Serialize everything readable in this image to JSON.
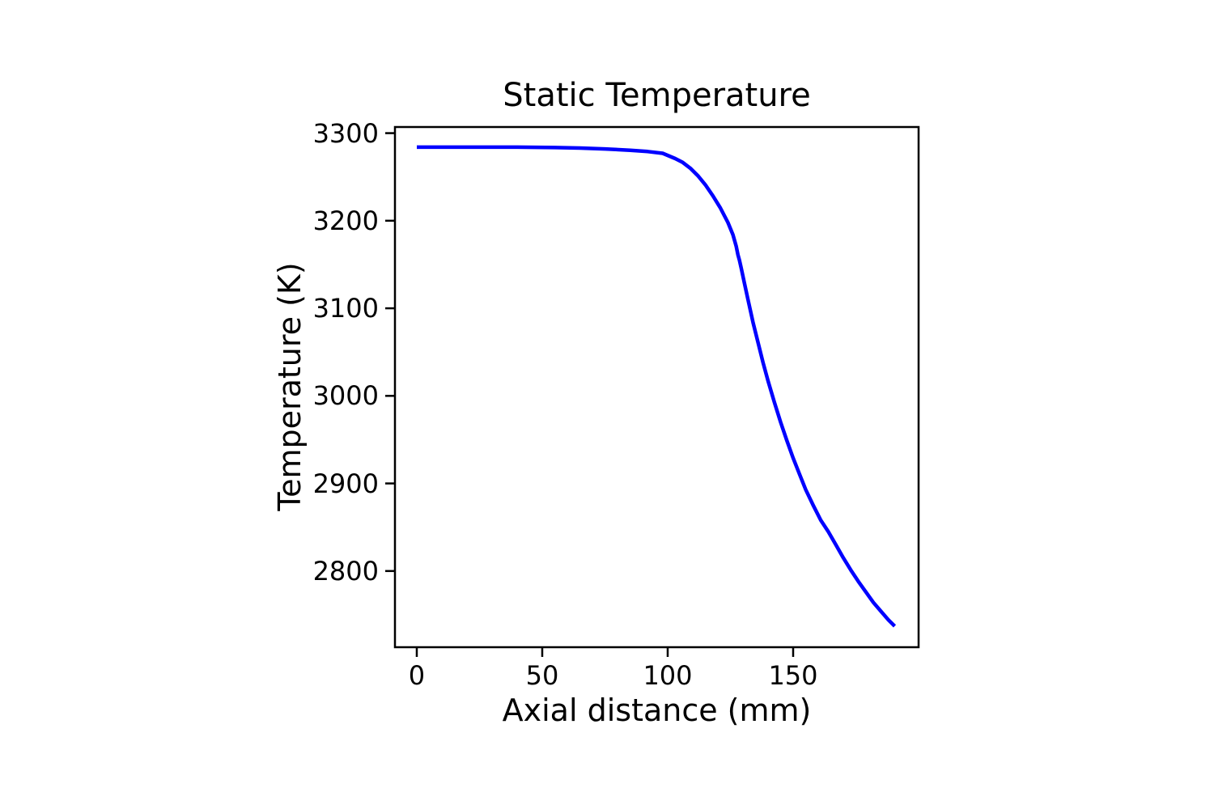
{
  "figure": {
    "background": "#ffffff",
    "frame_color": "#000000",
    "text_color": "#000000"
  },
  "chart_data": {
    "type": "line",
    "title": "Static Temperature",
    "xlabel": "Axial distance (mm)",
    "ylabel": "Temperature (K)",
    "xlim": [
      -8.7,
      200.0
    ],
    "ylim": [
      2713,
      3307
    ],
    "x_ticks": [
      0,
      50,
      100,
      150
    ],
    "y_ticks": [
      3300,
      3200,
      3100,
      3000,
      2900,
      2800
    ],
    "grid": false,
    "legend_position": "none",
    "series": [
      {
        "name": "Static Temperature",
        "color": "#0000ff",
        "points": [
          [
            0,
            3284
          ],
          [
            20,
            3284
          ],
          [
            40,
            3284
          ],
          [
            55,
            3283.5
          ],
          [
            65,
            3283
          ],
          [
            75,
            3282
          ],
          [
            85,
            3280.5
          ],
          [
            92,
            3279
          ],
          [
            98,
            3277
          ],
          [
            103,
            3271
          ],
          [
            106,
            3266.5
          ],
          [
            109,
            3260
          ],
          [
            112,
            3251.5
          ],
          [
            115,
            3241
          ],
          [
            118,
            3228.5
          ],
          [
            121,
            3214.5
          ],
          [
            124,
            3198
          ],
          [
            126,
            3184
          ],
          [
            127.3,
            3171
          ],
          [
            128.0,
            3161
          ],
          [
            128.6,
            3155
          ],
          [
            129.3,
            3146
          ],
          [
            130.5,
            3130
          ],
          [
            132,
            3110
          ],
          [
            134,
            3084
          ],
          [
            136,
            3061
          ],
          [
            138,
            3038
          ],
          [
            140,
            3017
          ],
          [
            142.5,
            2993
          ],
          [
            145,
            2970
          ],
          [
            147.5,
            2949
          ],
          [
            150,
            2929
          ],
          [
            152.5,
            2911
          ],
          [
            155,
            2893
          ],
          [
            158,
            2875
          ],
          [
            161,
            2858
          ],
          [
            164,
            2845
          ],
          [
            167,
            2830
          ],
          [
            170,
            2815
          ],
          [
            173,
            2801
          ],
          [
            176,
            2788
          ],
          [
            179,
            2776
          ],
          [
            182,
            2764
          ],
          [
            185,
            2754
          ],
          [
            188,
            2744
          ],
          [
            190.5,
            2737
          ]
        ]
      }
    ]
  }
}
